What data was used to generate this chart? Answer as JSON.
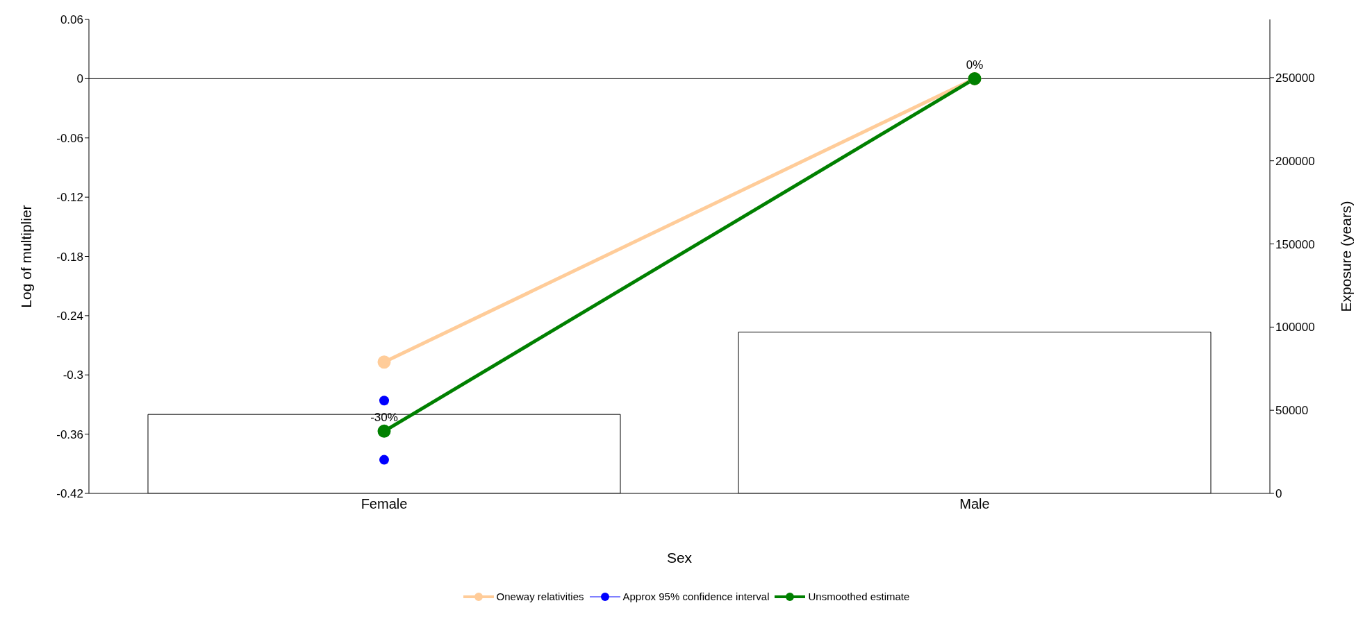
{
  "chart_data": {
    "type": "line",
    "xlabel": "Sex",
    "ylabel": "Log of multiplier",
    "y2label": "Exposure (years)",
    "categories": [
      "Female",
      "Male"
    ],
    "series": [
      {
        "type": "bar",
        "axis": "y2",
        "color": "#ffffff",
        "values": [
          47500,
          97000
        ]
      },
      {
        "name": "Oneway relativities",
        "color": "#ffcc99",
        "values": [
          -0.287,
          0
        ]
      },
      {
        "name": "Approx 95% confidence interval",
        "type": "scatter",
        "color": "#0000ff",
        "x": [
          "Female",
          "Female"
        ],
        "values": [
          -0.326,
          -0.386
        ]
      },
      {
        "name": "Unsmoothed estimate",
        "color": "#008000",
        "values": [
          -0.357,
          0
        ]
      }
    ],
    "ylim": [
      -0.42,
      0.06
    ],
    "yticks": [
      -0.42,
      -0.36,
      -0.3,
      -0.24,
      -0.18,
      -0.12,
      -0.06,
      0,
      0.06
    ],
    "y2lim": [
      0,
      285000
    ],
    "y2ticks": [
      0,
      50000,
      100000,
      150000,
      200000,
      250000
    ],
    "ref_lines": [
      {
        "axis": "y",
        "value": 0,
        "color": "#000000"
      }
    ],
    "annotations": [
      {
        "text": "-30%",
        "x": "Female",
        "y": -0.357
      },
      {
        "text": "0%",
        "x": "Male",
        "y": 0
      }
    ],
    "marker": "circle",
    "line_style": "solid",
    "grid": false,
    "legend": "bottom"
  }
}
